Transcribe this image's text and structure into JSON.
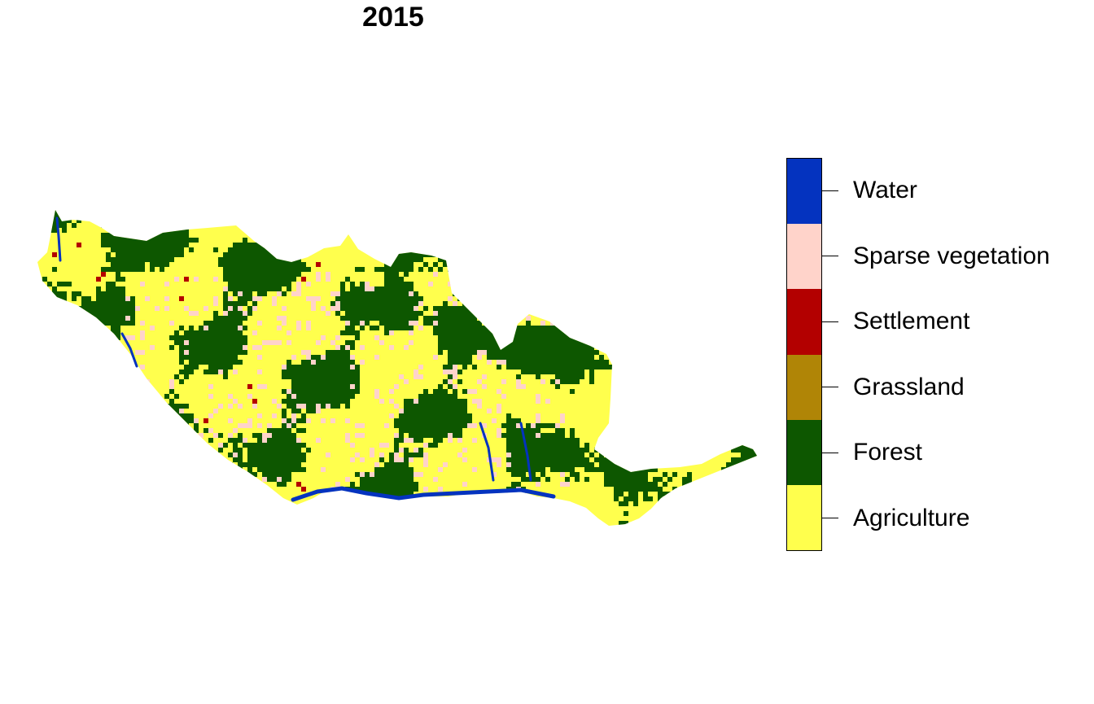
{
  "title": "2015",
  "legend": {
    "classes": [
      {
        "label": "Water",
        "color": "#0433BF"
      },
      {
        "label": "Sparse vegetation",
        "color": "#FFD3CA"
      },
      {
        "label": "Settlement",
        "color": "#B30000"
      },
      {
        "label": "Grassland",
        "color": "#B08506"
      },
      {
        "label": "Forest",
        "color": "#0D5700"
      },
      {
        "label": "Agriculture",
        "color": "#FFFF4D"
      }
    ]
  },
  "map": {
    "type": "categorical land-cover raster",
    "dominant_classes": [
      "Forest",
      "Agriculture"
    ],
    "minor_classes": [
      "Sparse vegetation",
      "Water",
      "Settlement"
    ]
  }
}
